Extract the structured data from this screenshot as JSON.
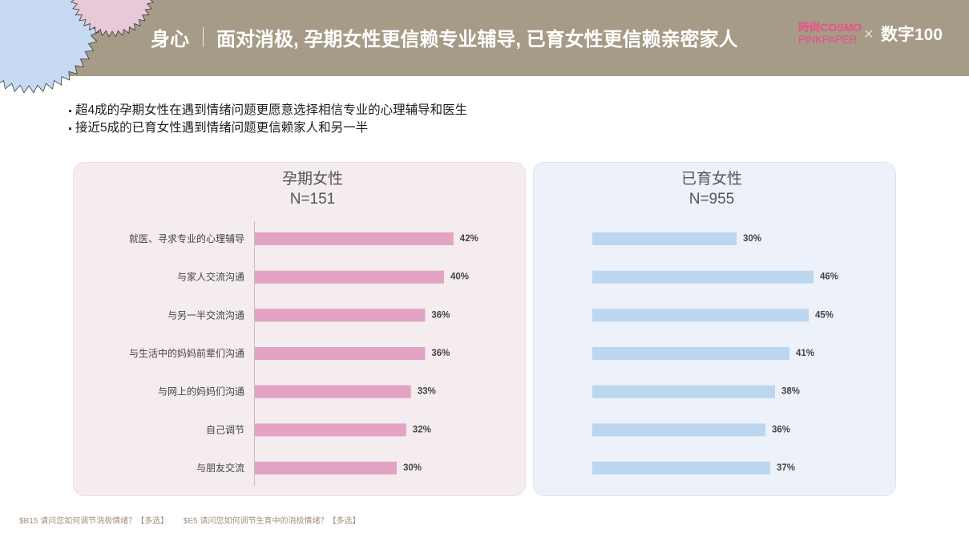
{
  "theme": {
    "header_bg": "#a69b86",
    "logo_pink": "#ea4f8f"
  },
  "header": {
    "section": "身心",
    "title": "面对消极, 孕期女性更信赖专业辅导, 已育女性更信赖亲密家人",
    "logo_cosmo_top": "時尚COSMO",
    "logo_cosmo_bottom": "PINKPAPER",
    "logo_x": "×",
    "logo_partner": "数字100"
  },
  "bullets": [
    "超4成的孕期女性在遇到情绪问题更愿意选择相信专业的心理辅导和医生",
    "接近5成的已育女性遇到情绪问题更信赖家人和另一半"
  ],
  "chart_data": {
    "type": "bar",
    "orientation": "horizontal",
    "unit": "%",
    "categories": [
      "就医、寻求专业的心理辅导",
      "与家人交流沟通",
      "与另一半交流沟通",
      "与生活中的妈妈前辈们沟通",
      "与网上的妈妈们沟通",
      "自己调节",
      "与朋友交流"
    ],
    "series": [
      {
        "name": "孕期女性",
        "sample": "N=151",
        "values": [
          42,
          40,
          36,
          36,
          33,
          32,
          30
        ],
        "labels": [
          "42%",
          "40%",
          "36%",
          "36%",
          "33%",
          "32%",
          "30%"
        ],
        "color": "#e3a3c4",
        "panel_color": "#f4ecef"
      },
      {
        "name": "已育女性",
        "sample": "N=955",
        "values": [
          30,
          46,
          45,
          41,
          38,
          36,
          37
        ],
        "labels": [
          "30%",
          "46%",
          "45%",
          "41%",
          "38%",
          "36%",
          "37%"
        ],
        "color": "#bdd6ef",
        "panel_color": "#edf2fa"
      }
    ]
  },
  "footnotes": [
    "$B15 请问您如何调节消极情绪？【多选】",
    "$E5 请问您如何调节生育中的消极情绪？【多选】"
  ]
}
